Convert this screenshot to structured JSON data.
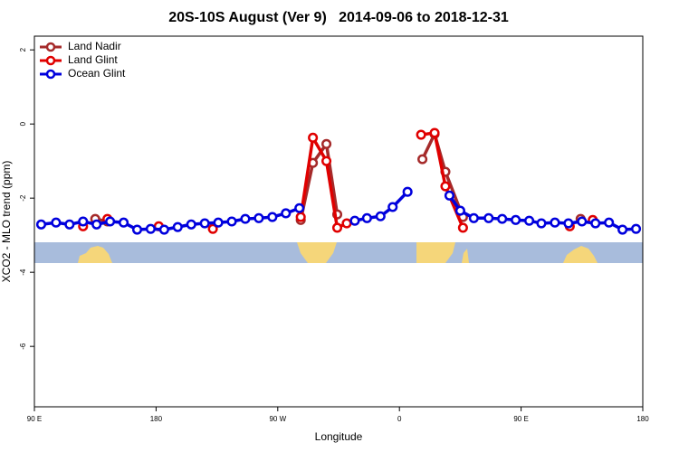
{
  "chart_data": {
    "type": "line",
    "title": "20S-10S August (Ver 9)   2014-09-06 to 2018-12-31",
    "x_label": "Longitude",
    "y_label": "XCO2 - MLO trend (ppm)",
    "xlim": [
      90,
      540
    ],
    "ylim": [
      -7.63,
      2.37
    ],
    "xticks": [
      {
        "value": 90,
        "label": "90 E"
      },
      {
        "value": 180,
        "label": "180"
      },
      {
        "value": 270,
        "label": "90 W"
      },
      {
        "value": 360,
        "label": "0"
      },
      {
        "value": 450,
        "label": "90 E"
      },
      {
        "value": 540,
        "label": "180"
      }
    ],
    "yticks": [
      -6,
      -4,
      -2,
      0,
      2
    ],
    "legend": "top-left",
    "series": [
      {
        "name": "Land Nadir",
        "color": "#a52a2a",
        "x": [
          135,
          144,
          null,
          287,
          296,
          306,
          314,
          null,
          377,
          386,
          394,
          407,
          null,
          494
        ],
        "values": [
          -2.56,
          -2.63,
          null,
          -2.59,
          -1.05,
          -0.54,
          -2.44,
          null,
          -0.95,
          -0.27,
          -1.29,
          -2.51,
          null,
          -2.56
        ]
      },
      {
        "name": "Land Glint",
        "color": "#e00000",
        "x": [
          126,
          null,
          144,
          null,
          182,
          null,
          222,
          null,
          287,
          296,
          306,
          314,
          321,
          null,
          376,
          386,
          394,
          407,
          null,
          486,
          null,
          503
        ],
        "values": [
          -2.76,
          null,
          -2.56,
          null,
          -2.76,
          null,
          -2.83,
          null,
          -2.51,
          -0.37,
          -1.0,
          -2.8,
          -2.68,
          null,
          -0.29,
          -0.24,
          -1.68,
          -2.8,
          null,
          -2.76,
          null,
          -2.59
        ]
      },
      {
        "name": "Ocean Glint",
        "color": "#0000dd",
        "x": [
          95,
          106,
          116,
          126,
          136,
          146,
          156,
          166,
          176,
          186,
          196,
          206,
          216,
          226,
          236,
          246,
          256,
          266,
          276,
          286,
          null,
          327,
          336,
          346,
          355,
          366,
          null,
          397,
          405,
          415,
          426,
          436,
          446,
          456,
          465,
          475,
          485,
          495,
          505,
          515,
          525,
          535
        ],
        "values": [
          -2.71,
          -2.66,
          -2.71,
          -2.63,
          -2.71,
          -2.63,
          -2.66,
          -2.85,
          -2.83,
          -2.85,
          -2.78,
          -2.71,
          -2.68,
          -2.66,
          -2.63,
          -2.56,
          -2.54,
          -2.51,
          -2.41,
          -2.27,
          null,
          -2.61,
          -2.54,
          -2.49,
          -2.24,
          -1.83,
          null,
          -1.93,
          -2.34,
          -2.54,
          -2.54,
          -2.56,
          -2.59,
          -2.61,
          -2.68,
          -2.66,
          -2.68,
          -2.63,
          -2.68,
          -2.66,
          -2.85,
          -2.83
        ]
      }
    ]
  }
}
